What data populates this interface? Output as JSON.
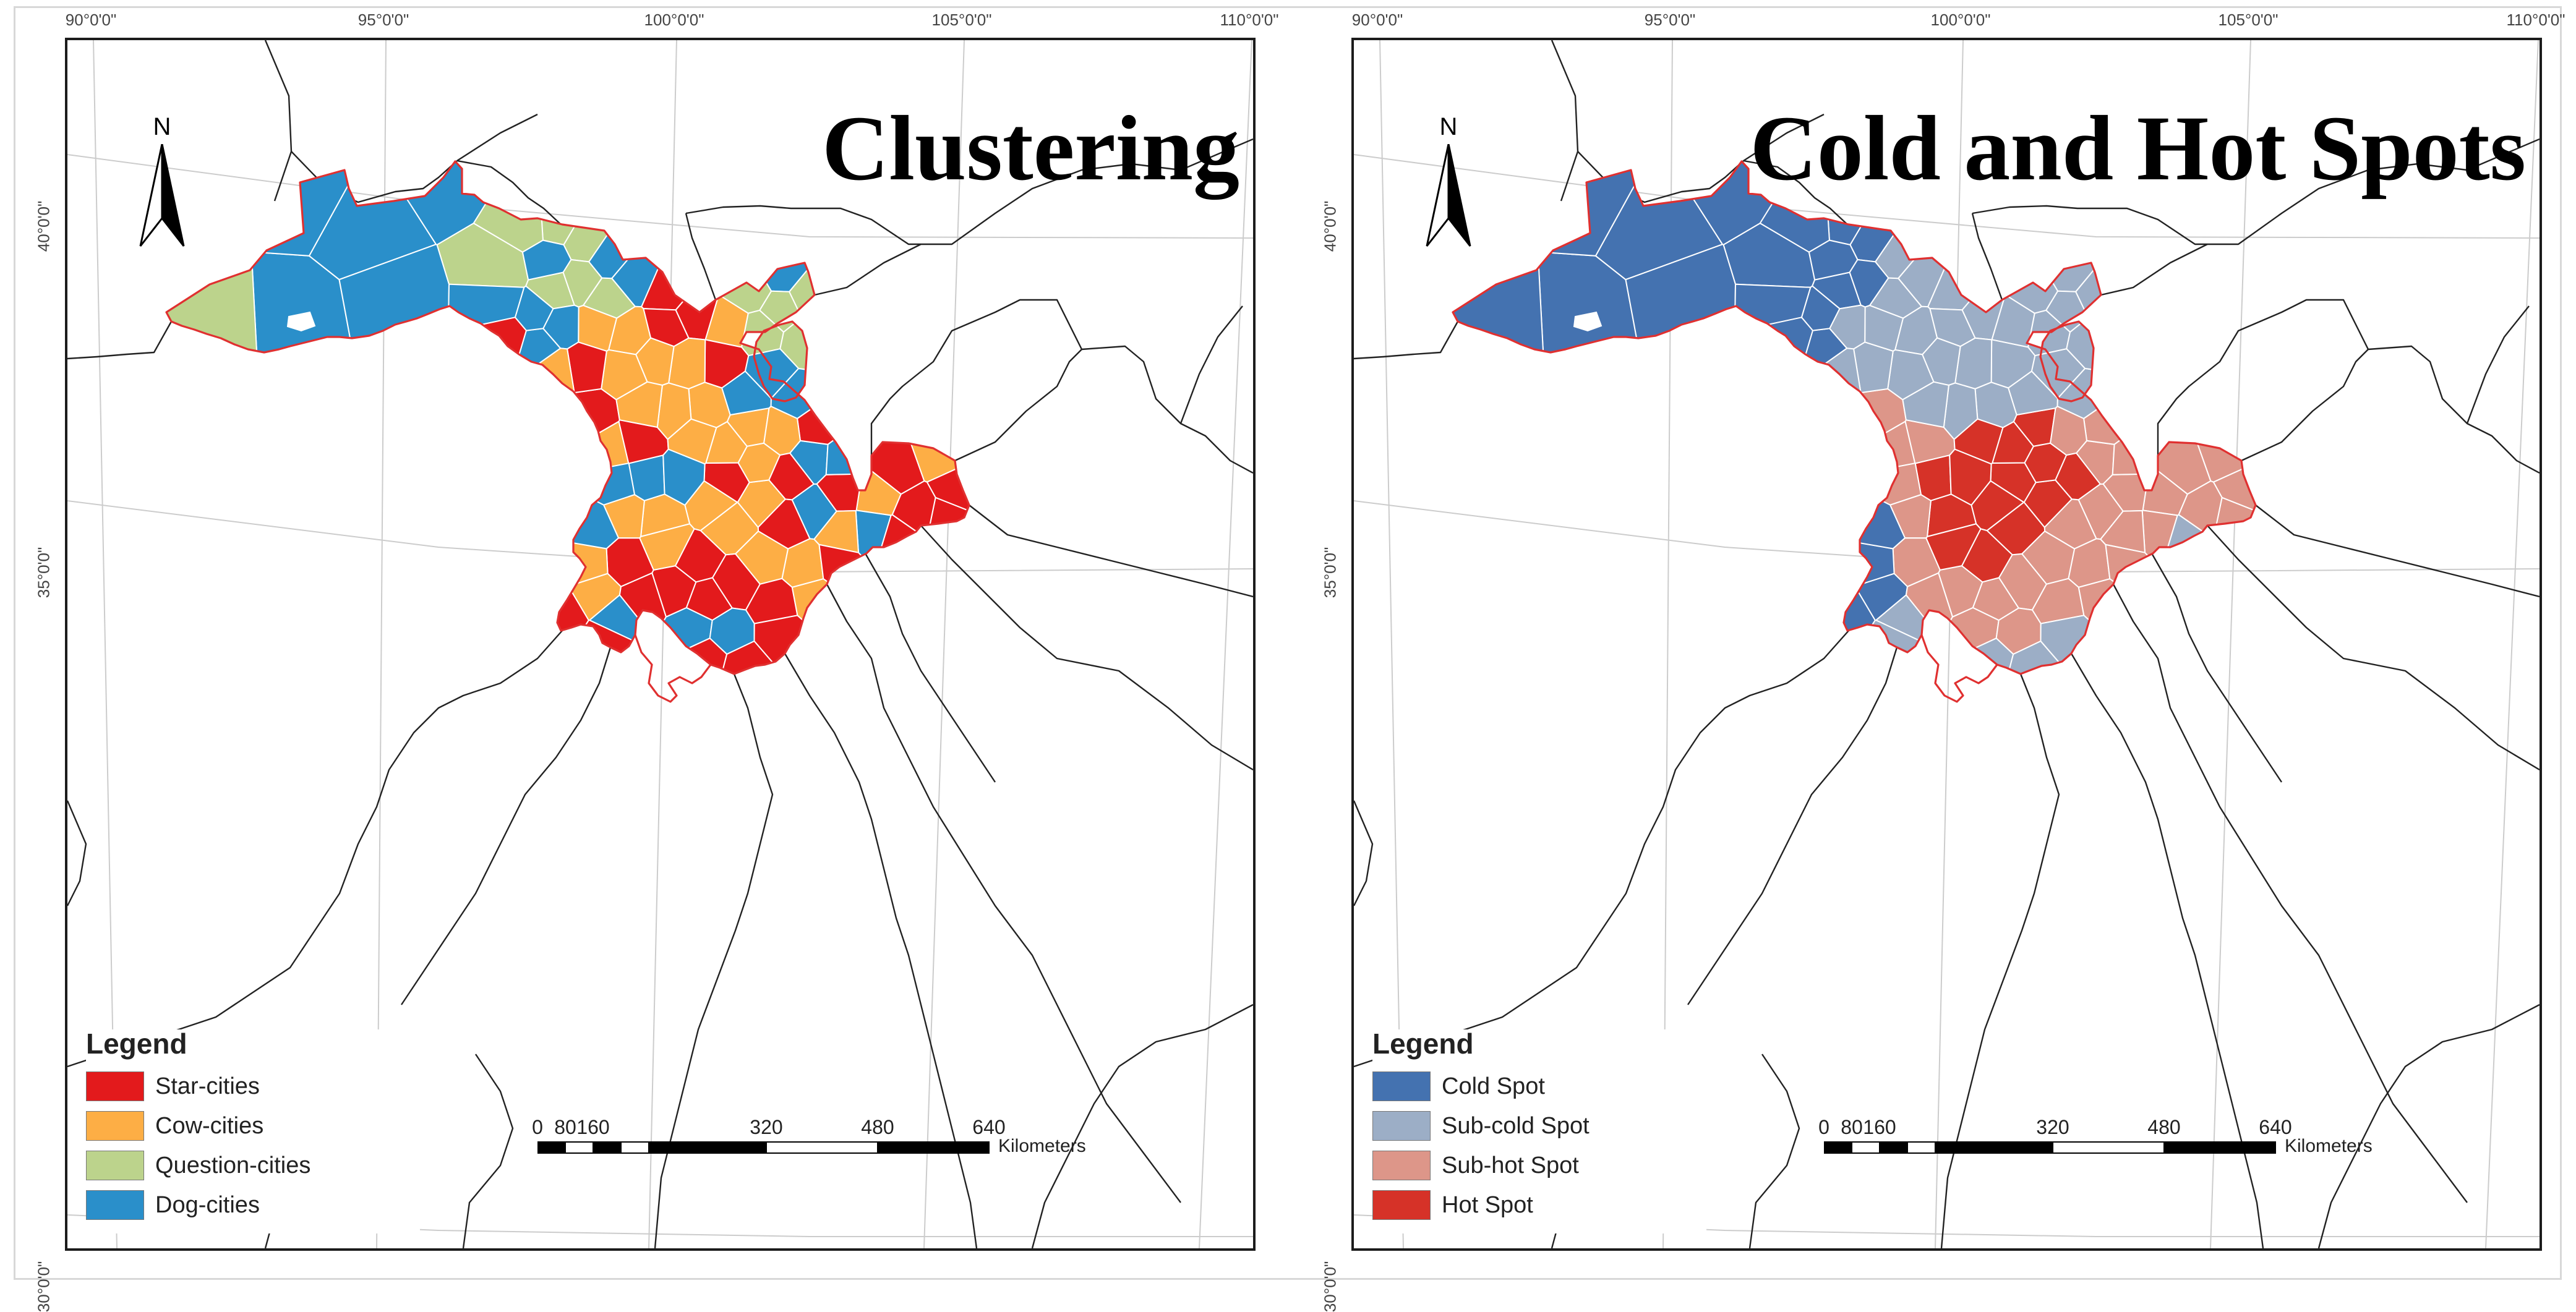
{
  "panels": [
    {
      "id": "clustering",
      "title": "Clustering",
      "legend": {
        "title": "Legend",
        "items": [
          {
            "label": "Star-cities",
            "color": "#e31a1c"
          },
          {
            "label": "Cow-cities",
            "color": "#fdae45"
          },
          {
            "label": "Question-cities",
            "color": "#bcd38c"
          },
          {
            "label": "Dog-cities",
            "color": "#2a8fca"
          }
        ]
      }
    },
    {
      "id": "hotspots",
      "title": "Cold and Hot Spots",
      "legend": {
        "title": "Legend",
        "items": [
          {
            "label": "Cold Spot",
            "color": "#4472b0"
          },
          {
            "label": "Sub-cold Spot",
            "color": "#9caec6"
          },
          {
            "label": "Sub-hot Spot",
            "color": "#dd9689"
          },
          {
            "label": "Hot Spot",
            "color": "#d63228"
          }
        ]
      }
    }
  ],
  "longitude_ticks": [
    "90°0'0\"",
    "95°0'0\"",
    "100°0'0\"",
    "105°0'0\"",
    "110°0'0\""
  ],
  "latitude_ticks": [
    "40°0'0\"",
    "35°0'0\"",
    "30°0'0\""
  ],
  "north_arrow": {
    "label": "N",
    "icon": "north-arrow-icon"
  },
  "scale_bar": {
    "ticks": [
      "0",
      "80",
      "160",
      "320",
      "480",
      "640"
    ],
    "unit": "Kilometers"
  },
  "colors": {
    "boundary": "#e03030",
    "district_lines": "#ffffff",
    "base_lines": "#222222",
    "graticule": "#cccccc"
  }
}
